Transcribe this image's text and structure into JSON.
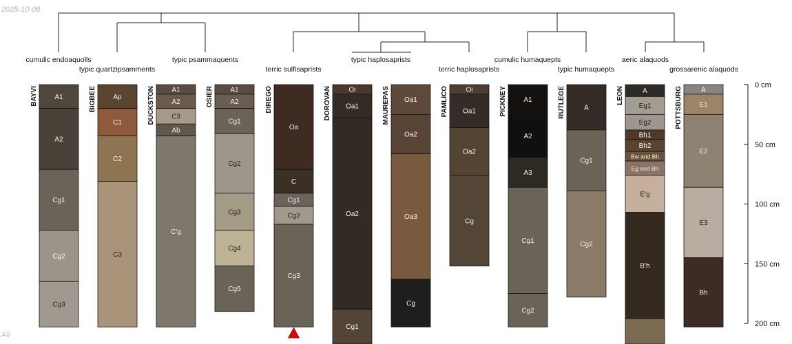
{
  "date_stamp": "2025-10-08",
  "corner_note": "All",
  "chart_data": {
    "type": "soil-profile-sketch",
    "depth_unit": "cm",
    "depth_axis": {
      "ticks": [
        0,
        50,
        100,
        150,
        200
      ],
      "tick_labels": [
        "0 cm",
        "50 cm",
        "100 cm",
        "150 cm",
        "200 cm"
      ],
      "range": [
        0,
        200
      ],
      "position": "right"
    },
    "taxa": [
      {
        "name": "cumulic endoaquolls",
        "profiles": [
          "BAYVI"
        ]
      },
      {
        "name": "typic quartzipsamments",
        "profiles": [
          "BIGBEE"
        ]
      },
      {
        "name": "typic psammaquents",
        "profiles": [
          "DUCKSTON",
          "OSIER"
        ]
      },
      {
        "name": "terric sulfisaprists",
        "profiles": [
          "DIREGO"
        ]
      },
      {
        "name": "typic haplosaprists",
        "profiles": [
          "DOROVAN",
          "MAUREPAS"
        ]
      },
      {
        "name": "terric haplosaprists",
        "profiles": [
          "PAMLICO"
        ]
      },
      {
        "name": "cumulic humaquepts",
        "profiles": [
          "PICKNEY"
        ]
      },
      {
        "name": "typic humaquepts",
        "profiles": [
          "RUTLEGE"
        ]
      },
      {
        "name": "aeric alaquods",
        "profiles": [
          "LEON"
        ]
      },
      {
        "name": "grossarenic alaquods",
        "profiles": [
          "POTTSBURG"
        ]
      }
    ],
    "profiles": [
      {
        "id": "BAYVI",
        "horizons": [
          {
            "name": "A1",
            "top": 0,
            "bottom": 20,
            "color": "#4f463c"
          },
          {
            "name": "A2",
            "top": 20,
            "bottom": 71,
            "color": "#4a4138"
          },
          {
            "name": "Cg1",
            "top": 71,
            "bottom": 122,
            "color": "#6a6358"
          },
          {
            "name": "Cg2",
            "top": 122,
            "bottom": 165,
            "color": "#9b9488"
          },
          {
            "name": "Cg3",
            "top": 165,
            "bottom": 203,
            "color": "#9f998f"
          }
        ]
      },
      {
        "id": "BIGBEE",
        "horizons": [
          {
            "name": "Ap",
            "top": 0,
            "bottom": 20,
            "color": "#5a4630"
          },
          {
            "name": "C1",
            "top": 20,
            "bottom": 43,
            "color": "#8f5a3a"
          },
          {
            "name": "C2",
            "top": 43,
            "bottom": 81,
            "color": "#8e7450"
          },
          {
            "name": "C3",
            "top": 81,
            "bottom": 203,
            "color": "#a99479"
          }
        ]
      },
      {
        "id": "DUCKSTON",
        "horizons": [
          {
            "name": "A1",
            "top": 0,
            "bottom": 8,
            "color": "#5a4c40"
          },
          {
            "name": "A2",
            "top": 8,
            "bottom": 20,
            "color": "#6a5a4c"
          },
          {
            "name": "C3",
            "top": 20,
            "bottom": 33,
            "color": "#a69a8b"
          },
          {
            "name": "Ab",
            "top": 33,
            "bottom": 43,
            "color": "#5f584f"
          },
          {
            "name": "C'g",
            "top": 43,
            "bottom": 203,
            "color": "#7e786c"
          }
        ]
      },
      {
        "id": "OSIER",
        "horizons": [
          {
            "name": "A1",
            "top": 0,
            "bottom": 8,
            "color": "#5a4c40"
          },
          {
            "name": "A2",
            "top": 8,
            "bottom": 20,
            "color": "#6a5d51"
          },
          {
            "name": "Cg1",
            "top": 20,
            "bottom": 41,
            "color": "#6a6358"
          },
          {
            "name": "Cg2",
            "top": 41,
            "bottom": 91,
            "color": "#9d968b"
          },
          {
            "name": "Cg3",
            "top": 91,
            "bottom": 122,
            "color": "#a49b86"
          },
          {
            "name": "Cg4",
            "top": 122,
            "bottom": 152,
            "color": "#bdb196"
          },
          {
            "name": "Cg5",
            "top": 152,
            "bottom": 190,
            "color": "#6a6358"
          }
        ]
      },
      {
        "id": "DIREGO",
        "bottom_marker": true,
        "horizons": [
          {
            "name": "Oa",
            "top": 0,
            "bottom": 71,
            "color": "#3e2b22"
          },
          {
            "name": "C",
            "top": 71,
            "bottom": 91,
            "color": "#3a3026"
          },
          {
            "name": "Cg1",
            "top": 91,
            "bottom": 102,
            "color": "#6a6358"
          },
          {
            "name": "Cg2",
            "top": 102,
            "bottom": 117,
            "color": "#a09a8e"
          },
          {
            "name": "Cg3",
            "top": 117,
            "bottom": 203,
            "color": "#6a6358"
          }
        ]
      },
      {
        "id": "DOROVAN",
        "horizons": [
          {
            "name": "Oi",
            "top": 0,
            "bottom": 8,
            "color": "#4a382b"
          },
          {
            "name": "Oa1",
            "top": 8,
            "bottom": 28,
            "color": "#352c26"
          },
          {
            "name": "Oa2",
            "top": 28,
            "bottom": 188,
            "color": "#322a24"
          },
          {
            "name": "Cg1",
            "top": 188,
            "bottom": 218,
            "color": "#524436"
          }
        ]
      },
      {
        "id": "MAUREPAS",
        "horizons": [
          {
            "name": "Oa1",
            "top": 0,
            "bottom": 25,
            "color": "#5d4a3b"
          },
          {
            "name": "Oa2",
            "top": 25,
            "bottom": 58,
            "color": "#574434"
          },
          {
            "name": "Oa3",
            "top": 58,
            "bottom": 163,
            "color": "#7a5a3e"
          },
          {
            "name": "Cg",
            "top": 163,
            "bottom": 203,
            "color": "#1e1e1c"
          }
        ]
      },
      {
        "id": "PAMLICO",
        "horizons": [
          {
            "name": "Oi",
            "top": 0,
            "bottom": 8,
            "color": "#4e3d30"
          },
          {
            "name": "Oa1",
            "top": 8,
            "bottom": 36,
            "color": "#352c27"
          },
          {
            "name": "Oa2",
            "top": 36,
            "bottom": 76,
            "color": "#534434"
          },
          {
            "name": "Cg",
            "top": 76,
            "bottom": 152,
            "color": "#544636"
          }
        ]
      },
      {
        "id": "PICKNEY",
        "horizons": [
          {
            "name": "A1",
            "top": 0,
            "bottom": 25,
            "color": "#141210"
          },
          {
            "name": "A2",
            "top": 25,
            "bottom": 61,
            "color": "#111010"
          },
          {
            "name": "A3",
            "top": 61,
            "bottom": 86,
            "color": "#2f2924"
          },
          {
            "name": "Cg1",
            "top": 86,
            "bottom": 175,
            "color": "#6a6358"
          },
          {
            "name": "Cg2",
            "top": 175,
            "bottom": 203,
            "color": "#6a6358"
          }
        ]
      },
      {
        "id": "RUTLEGE",
        "horizons": [
          {
            "name": "A",
            "top": 0,
            "bottom": 38,
            "color": "#352c27"
          },
          {
            "name": "Cg1",
            "top": 38,
            "bottom": 89,
            "color": "#6b6356"
          },
          {
            "name": "Cg2",
            "top": 89,
            "bottom": 178,
            "color": "#8a7b69"
          }
        ]
      },
      {
        "id": "LEON",
        "horizons": [
          {
            "name": "A",
            "top": 0,
            "bottom": 10,
            "color": "#2e2a26"
          },
          {
            "name": "Eg1",
            "top": 10,
            "bottom": 25,
            "color": "#a39c90"
          },
          {
            "name": "Eg2",
            "top": 25,
            "bottom": 38,
            "color": "#9d978d"
          },
          {
            "name": "Bh1",
            "top": 38,
            "bottom": 46,
            "color": "#51392a"
          },
          {
            "name": "Bh2",
            "top": 46,
            "bottom": 56,
            "color": "#5a4330"
          },
          {
            "name": "Bw and Bh",
            "top": 56,
            "bottom": 64,
            "color": "#6a5236"
          },
          {
            "name": "Eg and Bh",
            "top": 64,
            "bottom": 76,
            "color": "#8a7266"
          },
          {
            "name": "E'g",
            "top": 76,
            "bottom": 107,
            "color": "#c6b09c"
          },
          {
            "name": "B'h",
            "top": 107,
            "bottom": 196,
            "color": "#33291f"
          },
          {
            "name": "",
            "top": 196,
            "bottom": 218,
            "color": "#7b6a52"
          }
        ]
      },
      {
        "id": "POTTSBURG",
        "horizons": [
          {
            "name": "A",
            "top": 0,
            "bottom": 8,
            "color": "#8a8480"
          },
          {
            "name": "E1",
            "top": 8,
            "bottom": 25,
            "color": "#9c8466"
          },
          {
            "name": "E2",
            "top": 25,
            "bottom": 86,
            "color": "#8e8273"
          },
          {
            "name": "E3",
            "top": 86,
            "bottom": 145,
            "color": "#b8ada0"
          },
          {
            "name": "Bh",
            "top": 145,
            "bottom": 203,
            "color": "#3d2c26"
          }
        ]
      }
    ],
    "dendrogram": {
      "merges": [
        {
          "a": "DUCKSTON",
          "b": "OSIER"
        },
        {
          "a": "BIGBEE",
          "b": "DUCKSTON+OSIER"
        },
        {
          "a": "BAYVI",
          "b": "BIGBEE+DUCKSTON+OSIER"
        },
        {
          "a": "DOROVAN",
          "b": "MAUREPAS"
        },
        {
          "a": "DOROVAN+MAUREPAS",
          "b": "PAMLICO"
        },
        {
          "a": "DIREGO",
          "b": "DOROVAN+MAUREPAS+PAMLICO"
        },
        {
          "a": "PICKNEY",
          "b": "RUTLEGE"
        },
        {
          "a": "LEON",
          "b": "POTTSBURG"
        },
        {
          "a": "PICKNEY+RUTLEGE",
          "b": "LEON+POTTSBURG"
        },
        {
          "a": "DIREGO+DOROVAN+MAUREPAS+PAMLICO",
          "b": "PICKNEY+RUTLEGE+LEON+POTTSBURG"
        },
        {
          "a": "BAYVI+BIGBEE+DUCKSTON+OSIER",
          "b": "DIREGO+DOROVAN+MAUREPAS+PAMLICO+PICKNEY+RUTLEGE+LEON+POTTSBURG"
        }
      ]
    }
  }
}
